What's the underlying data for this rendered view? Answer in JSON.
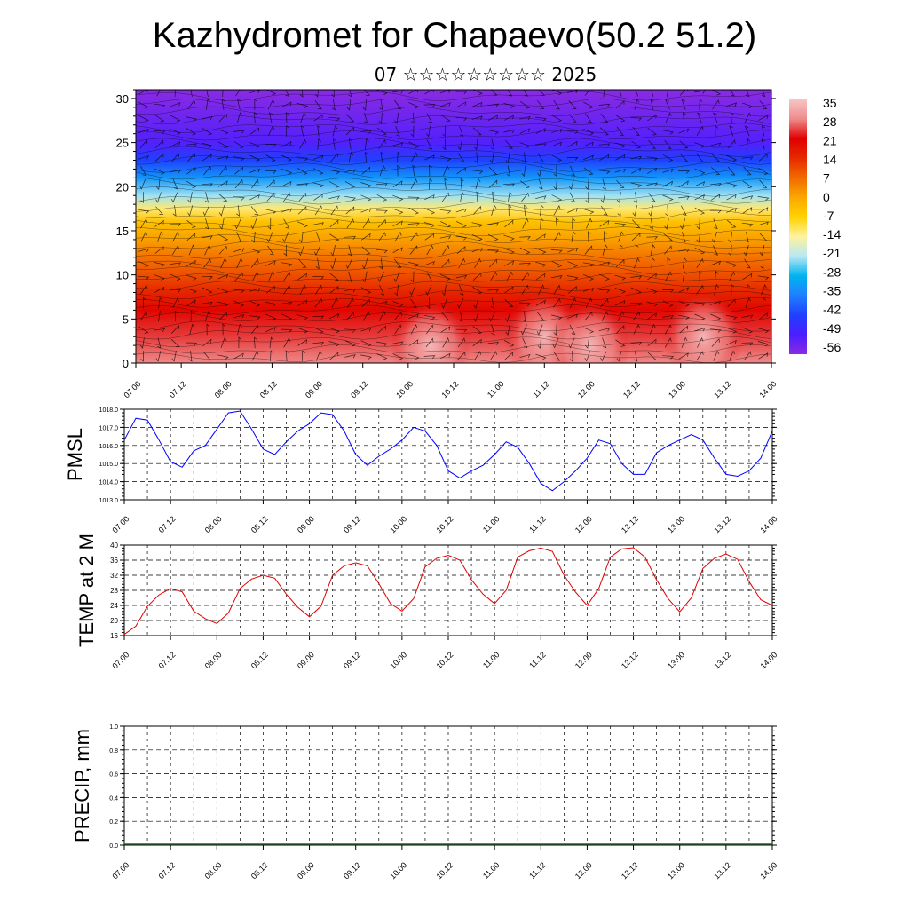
{
  "header": {
    "title": "Kazhydromet for Chapaevo(50.2 51.2)",
    "subtitle": "07 ☆☆☆☆☆☆☆☆☆ 2025"
  },
  "time_labels": [
    "07.00",
    "07.12",
    "08.00",
    "08.12",
    "09.00",
    "09.12",
    "10.00",
    "10.12",
    "11.00",
    "11.12",
    "12.00",
    "12.12",
    "13.00",
    "13.12",
    "14.00"
  ],
  "chart_data": [
    {
      "type": "heatmap",
      "title": "",
      "x_labels": [
        "07.00",
        "07.12",
        "08.00",
        "08.12",
        "09.00",
        "09.12",
        "10.00",
        "10.12",
        "11.00",
        "11.12",
        "12.00",
        "12.12",
        "13.00",
        "13.12",
        "14.00"
      ],
      "y_ticks": [
        0,
        5,
        10,
        15,
        20,
        25,
        30
      ],
      "ylim": [
        0,
        31
      ],
      "profile": [
        {
          "level": 0,
          "value": 28
        },
        {
          "level": 3,
          "value": 24
        },
        {
          "level": 6,
          "value": 20
        },
        {
          "level": 8,
          "value": 15
        },
        {
          "level": 10,
          "value": 10
        },
        {
          "level": 12,
          "value": 6
        },
        {
          "level": 14,
          "value": 1
        },
        {
          "level": 16,
          "value": -4
        },
        {
          "level": 17.5,
          "value": -12
        },
        {
          "level": 19,
          "value": -22
        },
        {
          "level": 21,
          "value": -32
        },
        {
          "level": 23,
          "value": -42
        },
        {
          "level": 25,
          "value": -50
        },
        {
          "level": 27,
          "value": -52
        },
        {
          "level": 29,
          "value": -54
        },
        {
          "level": 31,
          "value": -56
        }
      ],
      "warm_cores": [
        {
          "time": "10.06",
          "level": 2,
          "value": 30
        },
        {
          "time": "11.12",
          "level": 3,
          "value": 34
        },
        {
          "time": "12.00",
          "level": 2,
          "value": 33
        },
        {
          "time": "13.06",
          "level": 3,
          "value": 32
        }
      ],
      "legend": {
        "placement": "right",
        "labels": [
          "35",
          "28",
          "21",
          "14",
          "7",
          "0",
          "-7",
          "-14",
          "-21",
          "-28",
          "-35",
          "-42",
          "-49",
          "-56"
        ],
        "colors": [
          "#f7c5c5",
          "#ef8a8a",
          "#e00000",
          "#e62a00",
          "#f26a00",
          "#faa800",
          "#ffd200",
          "#fff2a0",
          "#b8e8f4",
          "#00b4f0",
          "#1f7fff",
          "#2040ff",
          "#4a1eff",
          "#8a2be2"
        ]
      }
    },
    {
      "type": "line",
      "ylabel": "PMSL",
      "ylim": [
        1013,
        1018
      ],
      "y_ticks": [
        "1013.0",
        "1014.0",
        "1015.0",
        "1016.0",
        "1017.0",
        "1018.0"
      ],
      "color": "#0000ff",
      "x": [
        "07.00",
        "07.03",
        "07.06",
        "07.09",
        "07.12",
        "07.15",
        "07.18",
        "07.21",
        "08.00",
        "08.03",
        "08.06",
        "08.09",
        "08.12",
        "08.15",
        "08.18",
        "08.21",
        "09.00",
        "09.03",
        "09.06",
        "09.09",
        "09.12",
        "09.15",
        "09.18",
        "09.21",
        "10.00",
        "10.03",
        "10.06",
        "10.09",
        "10.12",
        "10.15",
        "10.18",
        "10.21",
        "11.00",
        "11.03",
        "11.06",
        "11.09",
        "11.12",
        "11.15",
        "11.18",
        "11.21",
        "12.00",
        "12.03",
        "12.06",
        "12.09",
        "12.12",
        "12.15",
        "12.18",
        "12.21",
        "13.00",
        "13.03",
        "13.06",
        "13.09",
        "13.12",
        "13.15",
        "13.18",
        "13.21",
        "14.00"
      ],
      "values": [
        1016.3,
        1017.5,
        1017.4,
        1016.3,
        1015.1,
        1014.8,
        1015.7,
        1016.0,
        1016.9,
        1017.8,
        1017.9,
        1016.9,
        1015.8,
        1015.5,
        1016.2,
        1016.8,
        1017.2,
        1017.8,
        1017.7,
        1016.8,
        1015.5,
        1014.9,
        1015.4,
        1015.8,
        1016.3,
        1017.0,
        1016.8,
        1016.0,
        1014.6,
        1014.2,
        1014.6,
        1014.9,
        1015.5,
        1016.2,
        1015.9,
        1015.0,
        1013.9,
        1013.5,
        1014.0,
        1014.6,
        1015.3,
        1016.3,
        1016.1,
        1015.0,
        1014.4,
        1014.4,
        1015.6,
        1016.0,
        1016.3,
        1016.6,
        1016.3,
        1015.3,
        1014.4,
        1014.3,
        1014.6,
        1015.3,
        1016.8
      ]
    },
    {
      "type": "line",
      "ylabel": "TEMP at 2 M",
      "ylim": [
        16,
        40
      ],
      "y_ticks": [
        "16",
        "20",
        "24",
        "28",
        "32",
        "36",
        "40"
      ],
      "color": "#e00000",
      "x": [
        "07.00",
        "07.03",
        "07.06",
        "07.09",
        "07.12",
        "07.15",
        "07.18",
        "07.21",
        "08.00",
        "08.03",
        "08.06",
        "08.09",
        "08.12",
        "08.15",
        "08.18",
        "08.21",
        "09.00",
        "09.03",
        "09.06",
        "09.09",
        "09.12",
        "09.15",
        "09.18",
        "09.21",
        "10.00",
        "10.03",
        "10.06",
        "10.09",
        "10.12",
        "10.15",
        "10.18",
        "10.21",
        "11.00",
        "11.03",
        "11.06",
        "11.09",
        "11.12",
        "11.15",
        "11.18",
        "11.21",
        "12.00",
        "12.03",
        "12.06",
        "12.09",
        "12.12",
        "12.15",
        "12.18",
        "12.21",
        "13.00",
        "13.03",
        "13.06",
        "13.09",
        "13.12",
        "13.15",
        "13.18",
        "13.21",
        "14.00"
      ],
      "values": [
        16.3,
        18.5,
        23.8,
        26.8,
        28.5,
        27.6,
        22.5,
        20.5,
        19.2,
        22.0,
        28.5,
        31.0,
        32.0,
        31.2,
        27.0,
        23.5,
        21.0,
        23.8,
        32.0,
        34.5,
        35.3,
        34.5,
        29.8,
        24.5,
        22.5,
        25.8,
        34.2,
        36.5,
        37.3,
        36.0,
        30.8,
        27.0,
        24.5,
        28.0,
        36.8,
        38.5,
        39.2,
        38.3,
        32.0,
        27.5,
        24.0,
        28.5,
        36.8,
        39.0,
        39.3,
        36.8,
        30.8,
        25.8,
        22.3,
        26.0,
        33.8,
        36.5,
        37.6,
        36.2,
        30.3,
        25.5,
        24.0
      ]
    },
    {
      "type": "bar",
      "ylabel": "PRECIP, mm",
      "ylim": [
        0,
        1
      ],
      "y_ticks": [
        "0.0",
        "0.2",
        "0.4",
        "0.6",
        "0.8",
        "1.0"
      ],
      "values": []
    }
  ]
}
